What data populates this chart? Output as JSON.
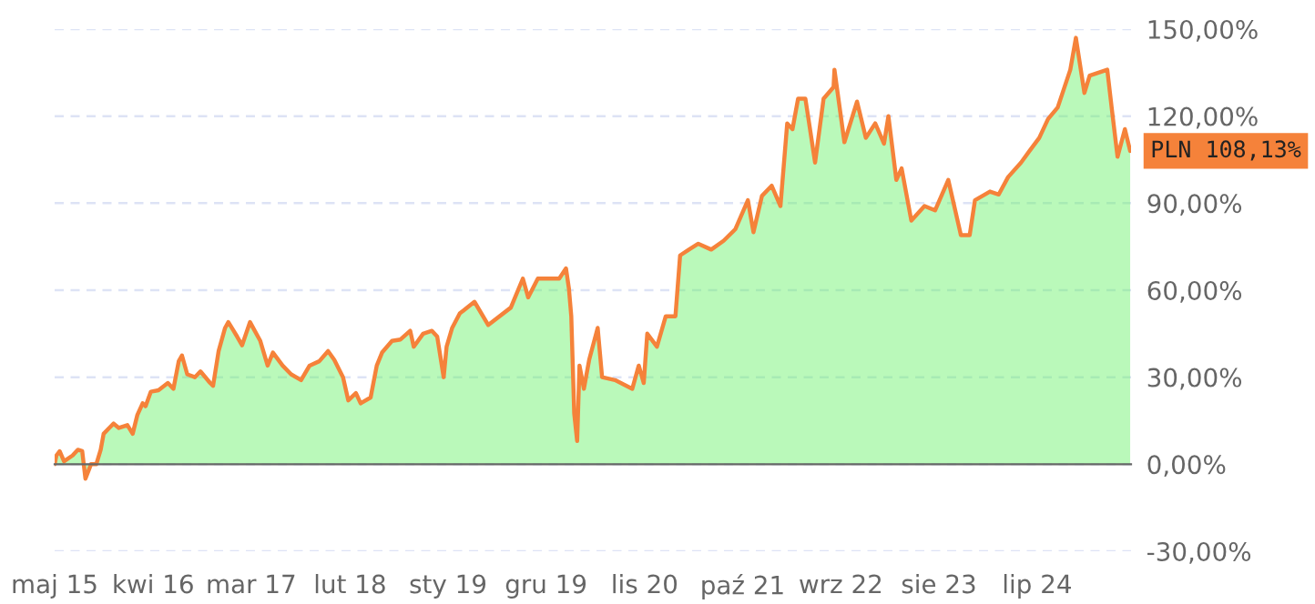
{
  "chart_data": {
    "type": "area",
    "x": [
      "2015-05-01",
      "2015-05-07",
      "2015-05-18",
      "2015-06-02",
      "2015-07-01",
      "2015-07-19",
      "2015-08-03",
      "2015-08-14",
      "2015-09-02",
      "2015-09-20",
      "2015-10-05",
      "2015-10-15",
      "2015-11-03",
      "2015-11-18",
      "2015-12-06",
      "2016-01-04",
      "2016-01-22",
      "2016-02-07",
      "2016-02-25",
      "2016-03-06",
      "2016-03-24",
      "2016-04-19",
      "2016-05-21",
      "2016-06-09",
      "2016-06-27",
      "2016-07-08",
      "2016-07-26",
      "2016-08-21",
      "2016-09-09",
      "2016-10-12",
      "2016-10-22",
      "2016-11-10",
      "2016-12-02",
      "2016-12-13",
      "2017-01-12",
      "2017-01-29",
      "2017-02-25",
      "2017-03-13",
      "2017-04-01",
      "2017-04-26",
      "2017-05-14",
      "2017-06-16",
      "2017-07-15",
      "2017-08-18",
      "2017-09-16",
      "2017-10-19",
      "2017-11-18",
      "2017-12-09",
      "2018-01-08",
      "2018-01-26",
      "2018-02-21",
      "2018-03-09",
      "2018-04-12",
      "2018-05-03",
      "2018-05-21",
      "2018-06-24",
      "2018-07-23",
      "2018-08-25",
      "2018-09-06",
      "2018-10-08",
      "2018-11-07",
      "2018-11-25",
      "2018-12-17",
      "2018-12-27",
      "2019-01-15",
      "2019-02-10",
      "2019-04-01",
      "2019-05-18",
      "2019-08-03",
      "2019-09-13",
      "2019-10-01",
      "2019-11-03",
      "2020-01-15",
      "2020-02-07",
      "2020-02-17",
      "2020-02-25",
      "2020-03-06",
      "2020-03-16",
      "2020-03-24",
      "2020-04-08",
      "2020-04-26",
      "2020-05-25",
      "2020-06-09",
      "2020-07-23",
      "2020-09-20",
      "2020-10-12",
      "2020-10-29",
      "2020-11-10",
      "2020-12-13",
      "2021-01-12",
      "2021-02-14",
      "2021-03-02",
      "2021-04-01",
      "2021-05-03",
      "2021-06-16",
      "2021-07-28",
      "2021-09-06",
      "2021-10-19",
      "2021-11-07",
      "2021-12-06",
      "2022-01-08",
      "2022-02-07",
      "2022-03-02",
      "2022-03-20",
      "2022-04-08",
      "2022-05-03",
      "2022-06-05",
      "2022-07-04",
      "2022-08-07",
      "2022-08-10",
      "2022-09-13",
      "2022-10-26",
      "2022-11-25",
      "2022-12-27",
      "2023-01-26",
      "2023-02-10",
      "2023-03-09",
      "2023-03-27",
      "2023-04-29",
      "2023-06-13",
      "2023-07-19",
      "2023-09-02",
      "2023-10-15",
      "2023-11-14",
      "2023-12-02",
      "2024-01-22",
      "2024-02-21",
      "2024-03-24",
      "2024-05-07",
      "2024-06-05",
      "2024-07-08",
      "2024-08-07",
      "2024-09-09",
      "2024-10-22",
      "2024-11-10",
      "2024-12-09",
      "2024-12-27",
      "2025-02-25",
      "2025-03-13",
      "2025-04-01",
      "2025-04-26",
      "2025-05-14"
    ],
    "series": [
      {
        "color": "#66f266",
        "values": [
          0,
          3,
          4.5,
          1,
          3,
          5,
          4.5,
          -5,
          0,
          0,
          5,
          10.5,
          12.5,
          14,
          12.5,
          13.5,
          10.5,
          17,
          21,
          20,
          25,
          25.5,
          28,
          26,
          35.5,
          37.5,
          31,
          30,
          32,
          28,
          27,
          39,
          47,
          49,
          44,
          41,
          49,
          46,
          42.5,
          34,
          38.5,
          34,
          31,
          29,
          34,
          35.5,
          39,
          36,
          30,
          22,
          24.5,
          21,
          23,
          34,
          38.5,
          42.5,
          43,
          46,
          40.5,
          45,
          46,
          44,
          30,
          40.5,
          47,
          52,
          56,
          48,
          54,
          64,
          57.5,
          64,
          64,
          67.5,
          60.5,
          51,
          17.5,
          8,
          34,
          26,
          36,
          47,
          30,
          29,
          26,
          34,
          28,
          45,
          40.5,
          51,
          51,
          72,
          74,
          76,
          74,
          77,
          81,
          91,
          80,
          92.5,
          96,
          89,
          117.5,
          115.5,
          126,
          126,
          104,
          126,
          130,
          136,
          111,
          125,
          112.5,
          117.5,
          110.5,
          120,
          98,
          102,
          84,
          89,
          87.5,
          98,
          79,
          79,
          91,
          94,
          93,
          99,
          104,
          108,
          112.5,
          119,
          123,
          136,
          147,
          128,
          134,
          136,
          122,
          106,
          115.5,
          108
        ]
      }
    ],
    "xlim": [
      "2015-05-01",
      "2025-05-17"
    ],
    "xticks": [
      {
        "value": "2015-05-01",
        "label": "maj 15"
      },
      {
        "value": "2016-04-01",
        "label": "kwi 16"
      },
      {
        "value": "2017-03-01",
        "label": "mar 17"
      },
      {
        "value": "2018-02-01",
        "label": "lut 18"
      },
      {
        "value": "2019-01-01",
        "label": "sty 19"
      },
      {
        "value": "2019-12-01",
        "label": "gru 19"
      },
      {
        "value": "2020-11-01",
        "label": "lis 20"
      },
      {
        "value": "2021-10-01",
        "label": "paź 21"
      },
      {
        "value": "2022-09-01",
        "label": "wrz 22"
      },
      {
        "value": "2023-08-01",
        "label": "sie 23"
      },
      {
        "value": "2024-07-01",
        "label": "lip 24"
      }
    ],
    "ylim": [
      -30,
      150
    ],
    "yticks": [
      {
        "value": -30,
        "label": "-30,00%"
      },
      {
        "value": 0,
        "label": "0,00%"
      },
      {
        "value": 30,
        "label": "30,00%"
      },
      {
        "value": 60,
        "label": "60,00%"
      },
      {
        "value": 90,
        "label": "90,00%"
      },
      {
        "value": 120,
        "label": "120,00%"
      },
      {
        "value": 150,
        "label": "150,00%"
      }
    ],
    "grid": "y",
    "annotations": [
      {
        "text": "PLN 108,13%",
        "x": "2025-05-14",
        "y": 108
      }
    ]
  }
}
